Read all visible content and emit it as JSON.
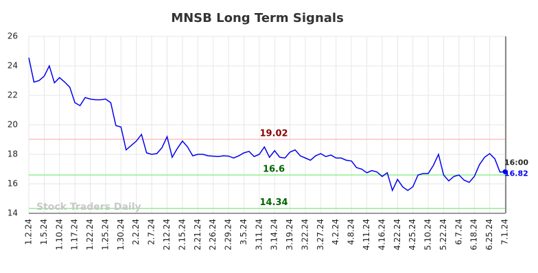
{
  "chart_data": {
    "type": "line",
    "title": "MNSB Long Term Signals",
    "categories": [
      "1.2.24",
      null,
      null,
      "1.5.24",
      null,
      null,
      "1.10.24",
      null,
      null,
      "1.17.24",
      null,
      null,
      "1.22.24",
      null,
      null,
      "1.25.24",
      null,
      null,
      "1.30.24",
      null,
      null,
      "2.2.24",
      null,
      null,
      "2.7.24",
      null,
      null,
      "2.12.24",
      null,
      null,
      "2.15.24",
      null,
      null,
      "2.21.24",
      null,
      null,
      "2.26.24",
      null,
      null,
      "2.29.24",
      null,
      null,
      "3.5.24",
      null,
      null,
      "3.11.24",
      null,
      null,
      "3.14.24",
      null,
      null,
      "3.19.24",
      null,
      null,
      "3.22.24",
      null,
      null,
      "3.27.24",
      null,
      null,
      "4.2.24",
      null,
      null,
      "4.8.24",
      null,
      null,
      "4.11.24",
      null,
      null,
      "4.16.24",
      null,
      null,
      "4.22.24",
      null,
      null,
      "4.25.24",
      null,
      null,
      "5.10.24",
      null,
      null,
      "5.22.24",
      null,
      null,
      "6.7.24",
      null,
      null,
      "6.18.24",
      null,
      null,
      "6.25.24",
      null,
      null,
      "7.1.24"
    ],
    "values": [
      24.55,
      22.9,
      23.0,
      23.3,
      24.0,
      22.85,
      23.2,
      22.9,
      22.55,
      21.5,
      21.3,
      21.85,
      21.75,
      21.7,
      21.7,
      21.75,
      21.5,
      19.95,
      19.85,
      18.3,
      18.6,
      18.9,
      19.35,
      18.1,
      18.0,
      18.05,
      18.45,
      19.2,
      17.8,
      18.4,
      18.9,
      18.5,
      17.9,
      18.0,
      18.0,
      17.9,
      17.88,
      17.85,
      17.9,
      17.88,
      17.75,
      17.9,
      18.1,
      18.2,
      17.85,
      18.0,
      18.5,
      17.8,
      18.25,
      17.8,
      17.75,
      18.15,
      18.3,
      17.9,
      17.75,
      17.6,
      17.9,
      18.05,
      17.85,
      17.95,
      17.75,
      17.75,
      17.6,
      17.55,
      17.1,
      17.0,
      16.75,
      16.9,
      16.8,
      16.5,
      16.75,
      15.55,
      16.3,
      15.8,
      15.55,
      15.8,
      16.6,
      16.7,
      16.7,
      17.25,
      18.0,
      16.6,
      16.2,
      16.5,
      16.6,
      16.25,
      16.1,
      16.5,
      17.3,
      17.8,
      18.05,
      17.7,
      16.8,
      16.82
    ],
    "color": "#0000ee",
    "ylim": [
      14,
      26
    ],
    "yticks": [
      14,
      16,
      18,
      20,
      22,
      24,
      26
    ],
    "grid": true,
    "hlines": [
      {
        "value": 19.02,
        "color": "#ffc0c0",
        "label_color": "#8b0000"
      },
      {
        "value": 16.6,
        "color": "#90ee90",
        "label_color": "#006400"
      },
      {
        "value": 14.34,
        "color": "#90ee90",
        "label_color": "#006400"
      }
    ],
    "last_time": "16:00",
    "watermark": "Stock Traders Daily"
  }
}
